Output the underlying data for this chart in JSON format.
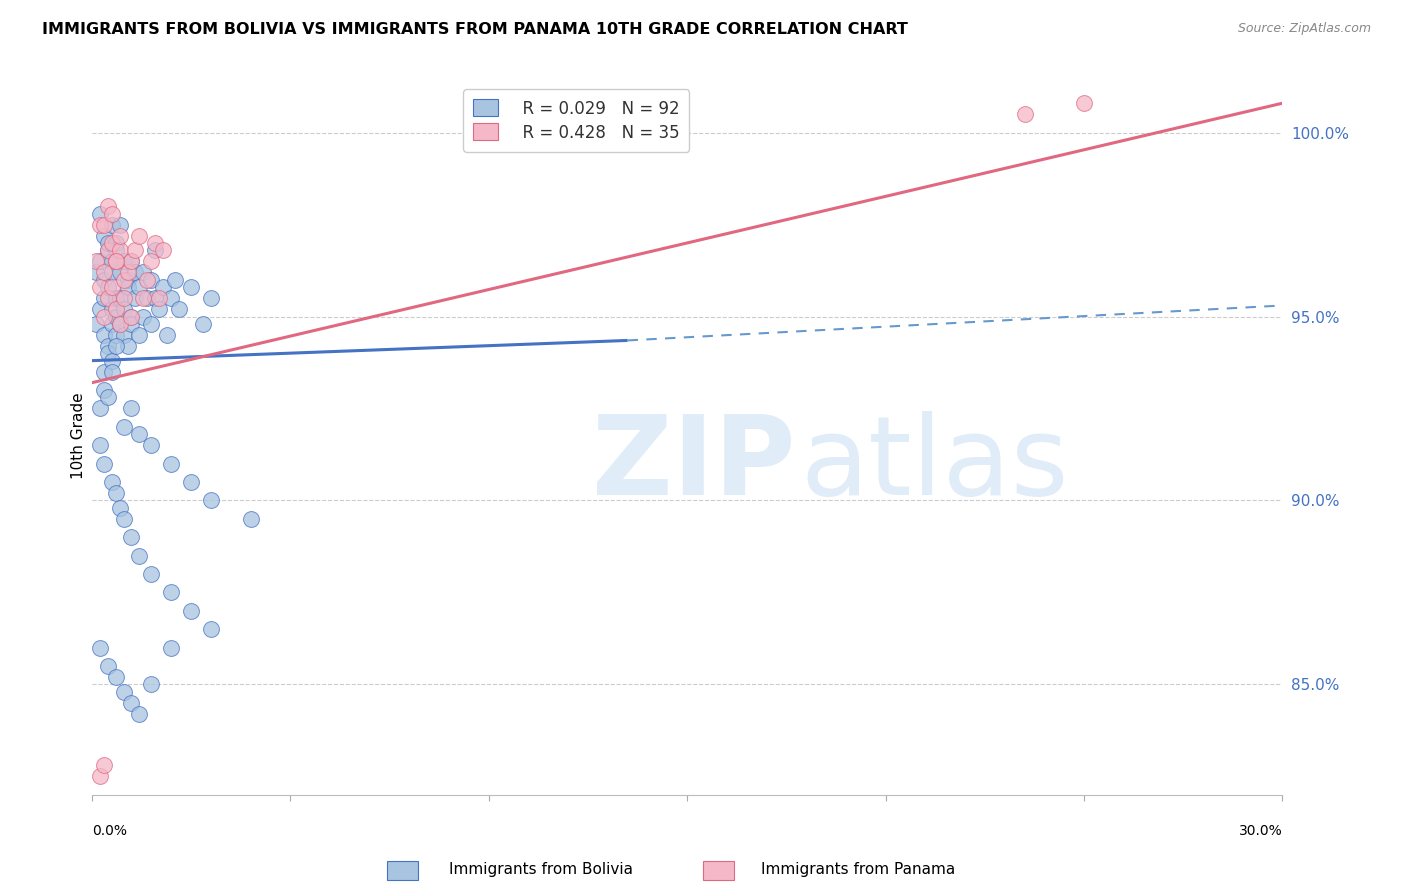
{
  "title": "IMMIGRANTS FROM BOLIVIA VS IMMIGRANTS FROM PANAMA 10TH GRADE CORRELATION CHART",
  "source": "Source: ZipAtlas.com",
  "ylabel": "10th Grade",
  "xlim": [
    0.0,
    0.3
  ],
  "ylim": [
    82.0,
    101.5
  ],
  "bolivia_color": "#a8c4e0",
  "panama_color": "#f4b8c8",
  "bolivia_line_color": "#4472c4",
  "panama_line_color": "#e06880",
  "trend_dash_color": "#6699cc",
  "legend_R_bolivia": "R = 0.029",
  "legend_N_bolivia": "N = 92",
  "legend_R_panama": "R = 0.428",
  "legend_N_panama": "N = 35",
  "bolivia_x": [
    0.001,
    0.001,
    0.002,
    0.002,
    0.002,
    0.003,
    0.003,
    0.003,
    0.003,
    0.004,
    0.004,
    0.004,
    0.004,
    0.005,
    0.005,
    0.005,
    0.005,
    0.005,
    0.006,
    0.006,
    0.006,
    0.006,
    0.006,
    0.007,
    0.007,
    0.007,
    0.007,
    0.008,
    0.008,
    0.008,
    0.009,
    0.009,
    0.009,
    0.01,
    0.01,
    0.01,
    0.011,
    0.011,
    0.012,
    0.012,
    0.013,
    0.013,
    0.014,
    0.015,
    0.015,
    0.016,
    0.016,
    0.017,
    0.018,
    0.019,
    0.02,
    0.021,
    0.022,
    0.025,
    0.028,
    0.03,
    0.003,
    0.004,
    0.005,
    0.006,
    0.002,
    0.003,
    0.004,
    0.005,
    0.008,
    0.01,
    0.012,
    0.015,
    0.02,
    0.025,
    0.03,
    0.04,
    0.002,
    0.003,
    0.005,
    0.006,
    0.007,
    0.008,
    0.01,
    0.012,
    0.015,
    0.02,
    0.025,
    0.03,
    0.002,
    0.004,
    0.006,
    0.008,
    0.01,
    0.012,
    0.015,
    0.02
  ],
  "bolivia_y": [
    94.8,
    96.2,
    97.8,
    96.5,
    95.2,
    96.0,
    97.2,
    95.5,
    94.5,
    96.8,
    95.8,
    97.0,
    94.2,
    96.5,
    95.2,
    97.5,
    94.8,
    96.2,
    95.5,
    97.0,
    94.5,
    96.8,
    95.0,
    96.2,
    97.5,
    94.8,
    95.5,
    96.5,
    95.2,
    94.5,
    96.0,
    95.8,
    94.2,
    96.5,
    95.0,
    94.8,
    95.5,
    96.2,
    95.8,
    94.5,
    96.2,
    95.0,
    95.5,
    96.0,
    94.8,
    95.5,
    96.8,
    95.2,
    95.8,
    94.5,
    95.5,
    96.0,
    95.2,
    95.8,
    94.8,
    95.5,
    93.5,
    94.0,
    93.8,
    94.2,
    92.5,
    93.0,
    92.8,
    93.5,
    92.0,
    92.5,
    91.8,
    91.5,
    91.0,
    90.5,
    90.0,
    89.5,
    91.5,
    91.0,
    90.5,
    90.2,
    89.8,
    89.5,
    89.0,
    88.5,
    88.0,
    87.5,
    87.0,
    86.5,
    86.0,
    85.5,
    85.2,
    84.8,
    84.5,
    84.2,
    85.0,
    86.0
  ],
  "panama_x": [
    0.001,
    0.002,
    0.002,
    0.003,
    0.003,
    0.004,
    0.004,
    0.005,
    0.005,
    0.006,
    0.006,
    0.007,
    0.007,
    0.008,
    0.008,
    0.009,
    0.01,
    0.01,
    0.011,
    0.012,
    0.013,
    0.014,
    0.015,
    0.016,
    0.017,
    0.018,
    0.003,
    0.004,
    0.005,
    0.006,
    0.007,
    0.002,
    0.003,
    0.235,
    0.25
  ],
  "panama_y": [
    96.5,
    97.5,
    95.8,
    96.2,
    95.0,
    96.8,
    95.5,
    97.0,
    95.8,
    96.5,
    95.2,
    96.8,
    94.8,
    96.0,
    95.5,
    96.2,
    96.5,
    95.0,
    96.8,
    97.2,
    95.5,
    96.0,
    96.5,
    97.0,
    95.5,
    96.8,
    97.5,
    98.0,
    97.8,
    96.5,
    97.2,
    82.5,
    82.8,
    100.5,
    100.8
  ],
  "bolivia_trend": [
    0.0,
    0.135,
    93.8,
    94.35
  ],
  "bolivia_dash": [
    0.135,
    0.3,
    94.35,
    95.3
  ],
  "panama_trend": [
    0.0,
    0.3,
    93.2,
    100.8
  ]
}
